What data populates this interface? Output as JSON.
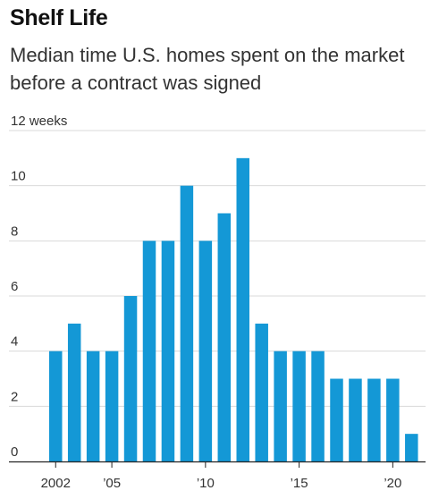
{
  "chart_data": {
    "type": "bar",
    "title": "Shelf Life",
    "subtitle": "Median time U.S. homes spent on the market before a contract was signed",
    "x": [
      2002,
      2003,
      2004,
      2005,
      2006,
      2007,
      2008,
      2009,
      2010,
      2011,
      2012,
      2013,
      2014,
      2015,
      2016,
      2017,
      2018,
      2019,
      2020,
      2021
    ],
    "values": [
      4,
      5,
      4,
      4,
      6,
      8,
      8,
      10,
      8,
      9,
      11,
      5,
      4,
      4,
      4,
      3,
      3,
      3,
      3,
      1
    ],
    "ylim": [
      0,
      12
    ],
    "y_ticks": [
      "0",
      "2",
      "4",
      "6",
      "8",
      "10",
      "12 weeks"
    ],
    "x_tick_labels": [
      {
        "x": 2002,
        "label": "2002"
      },
      {
        "x": 2005,
        "label": "’05"
      },
      {
        "x": 2010,
        "label": "’10"
      },
      {
        "x": 2015,
        "label": "’15"
      },
      {
        "x": 2020,
        "label": "’20"
      }
    ],
    "bar_color": "#1498d6",
    "grid": true,
    "legend": "none"
  }
}
